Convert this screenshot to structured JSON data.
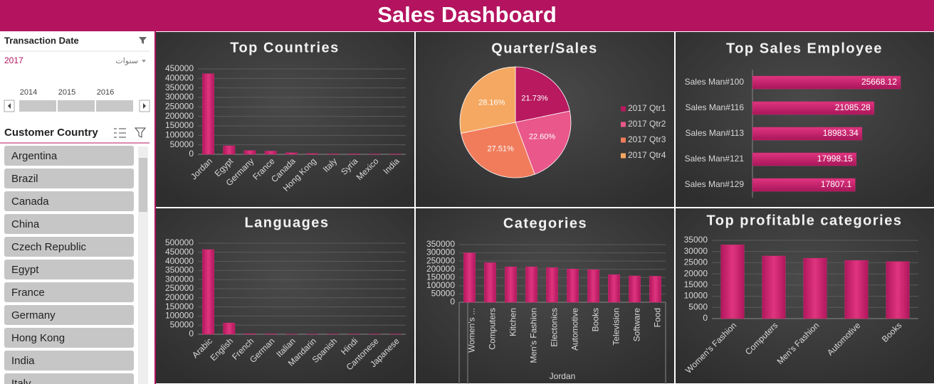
{
  "header": {
    "title": "Sales Dashboard"
  },
  "date_slicer": {
    "title": "Transaction Date",
    "selected": "2017",
    "level": "سنوات",
    "years": [
      "2014",
      "2015",
      "2016"
    ]
  },
  "country_slicer": {
    "title": "Customer Country",
    "items": [
      "Argentina",
      "Brazil",
      "Canada",
      "China",
      "Czech Republic",
      "Egypt",
      "France",
      "Germany",
      "Hong Kong",
      "India",
      "Italy"
    ]
  },
  "chart_data": [
    {
      "type": "bar",
      "title": "Top Countries",
      "color": "#d42c78",
      "categories": [
        "Jordan",
        "Egypt",
        "Germany",
        "France",
        "Canada",
        "Hong Kong",
        "Italy",
        "Syria",
        "Mexico",
        "India"
      ],
      "values": [
        425000,
        45000,
        20000,
        17000,
        8000,
        4000,
        2000,
        2000,
        1500,
        1500
      ],
      "ylim": [
        0,
        450000
      ],
      "yticks": [
        0,
        50000,
        100000,
        150000,
        200000,
        250000,
        300000,
        350000,
        400000,
        450000
      ],
      "grid": true
    },
    {
      "type": "pie",
      "title": "Quarter/Sales",
      "categories": [
        "2017 Qtr1",
        "2017 Qtr2",
        "2017 Qtr3",
        "2017 Qtr4"
      ],
      "values": [
        21.73,
        22.6,
        27.51,
        28.16
      ],
      "value_labels": [
        "21.73%",
        "22.60%",
        "27.51%",
        "28.16%"
      ],
      "colors": [
        "#b8195f",
        "#e9578b",
        "#f07c5c",
        "#f5a862"
      ]
    },
    {
      "type": "hbar",
      "title": "Top Sales Employee",
      "color": "#d42c78",
      "categories": [
        "Sales Man#100",
        "Sales Man#116",
        "Sales Man#113",
        "Sales Man#121",
        "Sales Man#129"
      ],
      "values": [
        25668.12,
        21085.28,
        18983.34,
        17998.15,
        17807.1
      ]
    },
    {
      "type": "bar",
      "title": "Languages",
      "color": "#d42c78",
      "categories": [
        "Arabic",
        "English",
        "French",
        "German",
        "Italian",
        "Mandarin",
        "Spanish",
        "Hindi",
        "Cantonese",
        "Japanese"
      ],
      "values": [
        465000,
        62000,
        3000,
        2000,
        1000,
        1000,
        1000,
        1000,
        1000,
        1000
      ],
      "ylim": [
        0,
        500000
      ],
      "yticks": [
        0,
        50000,
        100000,
        150000,
        200000,
        250000,
        300000,
        350000,
        400000,
        450000,
        500000
      ],
      "grid": true
    },
    {
      "type": "bar",
      "title": "Categories",
      "color": "#d42c78",
      "group_label": "Jordan",
      "categories": [
        "Women's ...",
        "Computers",
        "Kitchen",
        "Men's Fashion",
        "Electonics",
        "Automotive",
        "Books",
        "Television",
        "Software",
        "Food"
      ],
      "values": [
        300000,
        240000,
        215000,
        215000,
        210000,
        202000,
        198000,
        168000,
        160000,
        158000
      ],
      "ylim": [
        0,
        350000
      ],
      "yticks": [
        0,
        50000,
        100000,
        150000,
        200000,
        250000,
        300000,
        350000
      ],
      "grid": true
    },
    {
      "type": "bar",
      "title": "Top profitable categories",
      "color": "#d42c78",
      "categories": [
        "Women's Fashion",
        "Computers",
        "Men's Fashion",
        "Automotive",
        "Books"
      ],
      "values": [
        33000,
        28000,
        27000,
        26000,
        25500
      ],
      "ylim": [
        0,
        35000
      ],
      "yticks": [
        0,
        5000,
        10000,
        15000,
        20000,
        25000,
        30000,
        35000
      ],
      "grid": true
    }
  ]
}
